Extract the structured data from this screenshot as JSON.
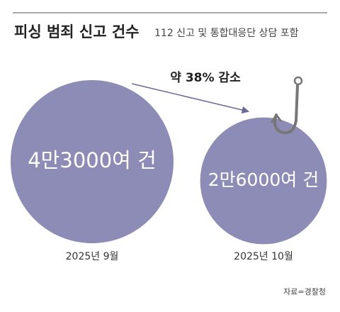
{
  "chart_data": {
    "type": "bubble",
    "title": "피싱 범죄 신고 건수",
    "subtitle": "112 신고 및 통합대응단 상담 포함",
    "categories": [
      "2025년 9월",
      "2025년 10월"
    ],
    "values": [
      43000,
      26000
    ],
    "value_labels": [
      "4만3000여 건",
      "2만6000여 건"
    ],
    "color": "#8d8cb6",
    "annotation": "약 38% 감소",
    "source": "자료=경찰청"
  }
}
